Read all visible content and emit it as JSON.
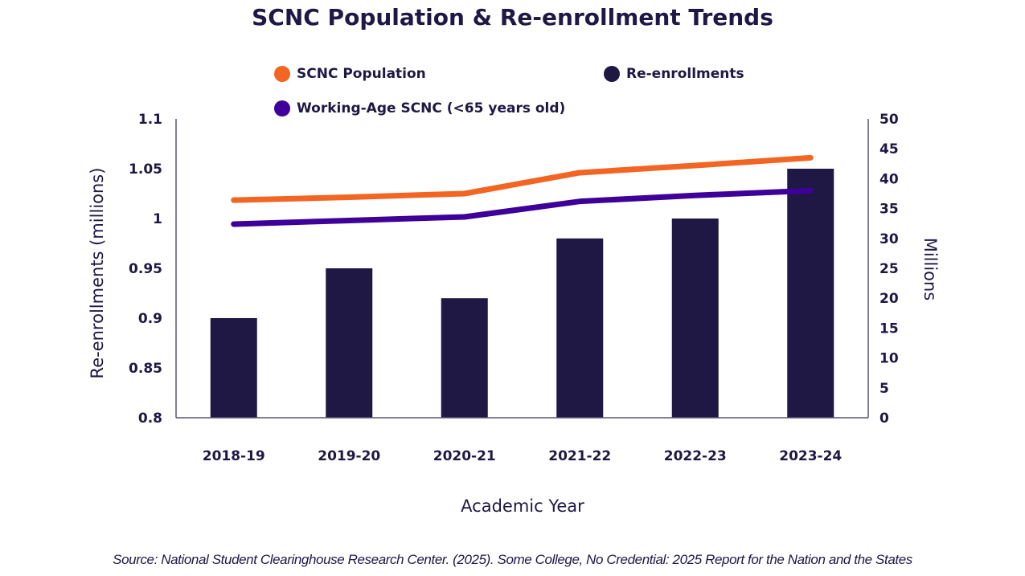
{
  "chart_data": {
    "type": "bar",
    "title": "SCNC Population & Re-enrollment Trends",
    "categories": [
      "2018-19",
      "2019-20",
      "2020-21",
      "2021-22",
      "2022-23",
      "2023-24"
    ],
    "xlabel": "Academic Year",
    "ylabel": "Re-enrollments (millions)",
    "y2label": "Millions",
    "ylim": [
      0.8,
      1.1
    ],
    "y_ticks": [
      "0.8",
      "0.85",
      "0.9",
      "0.95",
      "1",
      "1.05",
      "1.1"
    ],
    "y_tick_values": [
      0.8,
      0.85,
      0.9,
      0.95,
      1.0,
      1.05,
      1.1
    ],
    "y2lim": [
      0,
      50
    ],
    "y2_ticks": [
      "0",
      "5",
      "10",
      "15",
      "20",
      "25",
      "30",
      "35",
      "40",
      "45",
      "50"
    ],
    "y2_tick_values": [
      0,
      5,
      10,
      15,
      20,
      25,
      30,
      35,
      40,
      45,
      50
    ],
    "grid": false,
    "legend_position": "top",
    "series": [
      {
        "name": "SCNC Population",
        "type": "line",
        "axis": "right",
        "color": "#f26522",
        "values": [
          36.4,
          36.9,
          37.5,
          41.0,
          42.2,
          43.5
        ]
      },
      {
        "name": "Re-enrollments",
        "type": "bar",
        "axis": "left",
        "color": "#1f1845",
        "values": [
          0.9,
          0.95,
          0.92,
          0.98,
          1.0,
          1.05
        ]
      },
      {
        "name": "Working-Age SCNC (<65 years old)",
        "type": "line",
        "axis": "right",
        "color": "#3f0099",
        "values": [
          32.4,
          33.0,
          33.6,
          36.2,
          37.2,
          38.0
        ]
      }
    ],
    "source": "Source: National Student Clearinghouse Research Center. (2025). Some College, No Credential: 2025 Report for the Nation and the States"
  },
  "legend": [
    {
      "label": "SCNC Population",
      "color": "#f26522"
    },
    {
      "label": "Re-enrollments",
      "color": "#1f1845"
    },
    {
      "label": "Working-Age SCNC (<65 years old)",
      "color": "#3f0099"
    }
  ]
}
